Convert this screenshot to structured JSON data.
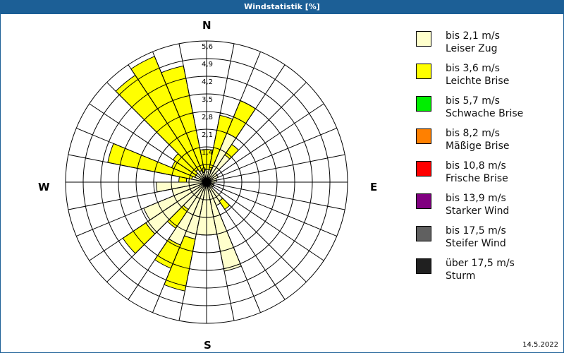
{
  "window": {
    "title": "Windstatistik [%]"
  },
  "footer": {
    "date": "14.5.2022"
  },
  "compass": {
    "n": "N",
    "e": "E",
    "s": "S",
    "w": "W"
  },
  "legend": [
    {
      "range": "bis 2,1 m/s",
      "name": "Leiser Zug",
      "color": "#ffffcc"
    },
    {
      "range": "bis 3,6 m/s",
      "name": "Leichte Brise",
      "color": "#ffff00"
    },
    {
      "range": "bis 5,7 m/s",
      "name": "Schwache Brise",
      "color": "#00ee00"
    },
    {
      "range": "bis 8,2 m/s",
      "name": "Mäßige Brise",
      "color": "#ff8000"
    },
    {
      "range": "bis 10,8 m/s",
      "name": "Frische Brise",
      "color": "#ff0000"
    },
    {
      "range": "bis 13,9 m/s",
      "name": "Starker Wind",
      "color": "#800080"
    },
    {
      "range": "bis 17,5 m/s",
      "name": "Steifer Wind",
      "color": "#606060"
    },
    {
      "range": "über 17,5 m/s",
      "name": "Sturm",
      "color": "#202020"
    }
  ],
  "chart_data": {
    "type": "windrose",
    "title": "Windstatistik [%]",
    "unit": "%",
    "rings": [
      "0,7",
      "1,4",
      "2,1",
      "2,8",
      "3,5",
      "4,2",
      "4,9",
      "5,6"
    ],
    "rmax": 5.6,
    "sectors": 32,
    "series_names": [
      "bis 2,1 m/s Leiser Zug",
      "bis 3,6 m/s Leichte Brise"
    ],
    "directions_deg_start": [
      0,
      11.25,
      22.5,
      33.75,
      45,
      56.25,
      67.5,
      78.75,
      90,
      101.25,
      112.5,
      123.75,
      135,
      146.25,
      157.5,
      168.75,
      180,
      191.25,
      202.5,
      213.75,
      225,
      236.25,
      247.5,
      258.75,
      270,
      281.25,
      292.5,
      303.75,
      315,
      326.25,
      337.5,
      348.75
    ],
    "light": [
      0.5,
      0.5,
      2.1,
      1.3,
      0.5,
      0.5,
      0.4,
      0.4,
      0.3,
      0.3,
      0.3,
      0.3,
      0.9,
      1.0,
      3.6,
      2.1,
      2.1,
      2.3,
      2.7,
      1.3,
      2.9,
      2.7,
      1.4,
      2.0,
      0.8,
      0.6,
      0.5,
      0.5,
      0.6,
      0.5,
      0.4,
      0.5
    ],
    "yellow_cumulative": [
      1.3,
      2.7,
      3.5,
      1.8,
      0.5,
      0.5,
      0.4,
      0.4,
      0.3,
      0.3,
      0.3,
      0.3,
      1.3,
      1.0,
      3.6,
      2.1,
      2.1,
      4.4,
      3.7,
      2.2,
      4.0,
      2.7,
      1.4,
      2.0,
      1.1,
      4.0,
      1.5,
      1.6,
      5.1,
      5.4,
      4.7,
      1.3
    ]
  }
}
